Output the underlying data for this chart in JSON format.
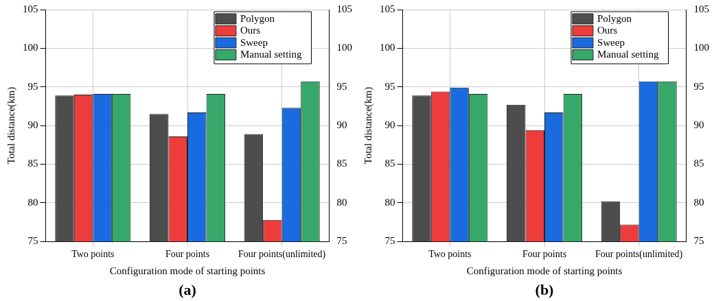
{
  "chart_data": [
    {
      "type": "bar",
      "xlabel": "Configuration mode of starting points",
      "ylabel": "Total distance(km)",
      "categories": [
        "Two points",
        "Four points",
        "Four points(unlimited)"
      ],
      "series": [
        {
          "name": "Polygon",
          "color": "#4d4d4d",
          "values": [
            93.9,
            91.5,
            88.9
          ]
        },
        {
          "name": "Ours",
          "color": "#ec3c3c",
          "values": [
            94.0,
            88.6,
            77.8
          ]
        },
        {
          "name": "Sweep",
          "color": "#1a6be0",
          "values": [
            94.1,
            91.7,
            92.3
          ]
        },
        {
          "name": "Manual setting",
          "color": "#36a96a",
          "values": [
            94.1,
            94.1,
            95.7
          ]
        }
      ],
      "ylim": [
        75,
        105
      ],
      "yticks": [
        75,
        80,
        85,
        90,
        95,
        100,
        105
      ],
      "y2lim": [
        75,
        105
      ],
      "y2ticks": [
        75,
        80,
        85,
        90,
        95,
        100,
        105
      ],
      "grid": true,
      "legend": "top right",
      "annotations": [
        "(a)"
      ]
    },
    {
      "type": "bar",
      "xlabel": "Configuration mode of starting points",
      "ylabel": "Total distance(km)",
      "categories": [
        "Two points",
        "Four points",
        "Four points(unlimited)"
      ],
      "series": [
        {
          "name": "Polygon",
          "color": "#4d4d4d",
          "values": [
            93.9,
            92.7,
            80.2
          ]
        },
        {
          "name": "Ours",
          "color": "#ec3c3c",
          "values": [
            94.4,
            89.4,
            77.2
          ]
        },
        {
          "name": "Sweep",
          "color": "#1a6be0",
          "values": [
            94.9,
            91.7,
            95.7
          ]
        },
        {
          "name": "Manual setting",
          "color": "#36a96a",
          "values": [
            94.1,
            94.1,
            95.7
          ]
        }
      ],
      "ylim": [
        75,
        105
      ],
      "yticks": [
        75,
        80,
        85,
        90,
        95,
        100,
        105
      ],
      "y2lim": [
        75,
        105
      ],
      "y2ticks": [
        75,
        80,
        85,
        90,
        95,
        100,
        105
      ],
      "grid": true,
      "legend": "top right",
      "annotations": [
        "(b)"
      ]
    }
  ]
}
